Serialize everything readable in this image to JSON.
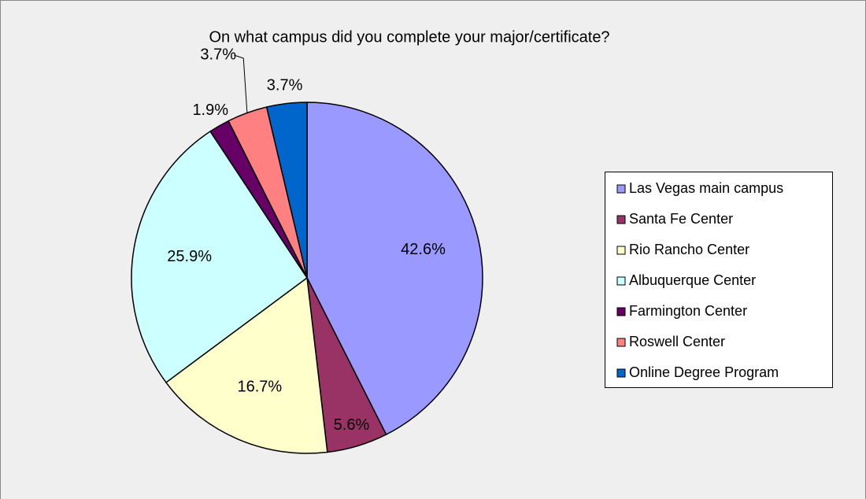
{
  "chart_data": {
    "type": "pie",
    "title": "On what campus did you complete your major/certificate?",
    "categories": [
      "Las Vegas main campus",
      "Santa Fe Center",
      "Rio Rancho Center",
      "Albuquerque Center",
      "Farmington Center",
      "Roswell Center",
      "Online Degree Program"
    ],
    "values": [
      42.6,
      5.6,
      16.7,
      25.9,
      1.9,
      3.7,
      3.7
    ],
    "value_labels": [
      "42.6%",
      "5.6%",
      "16.7%",
      "25.9%",
      "1.9%",
      "3.7%",
      "3.7%"
    ],
    "colors": [
      "#9999ff",
      "#993366",
      "#ffffcc",
      "#ccffff",
      "#660066",
      "#ff8080",
      "#0066cc"
    ],
    "legend": "right"
  }
}
